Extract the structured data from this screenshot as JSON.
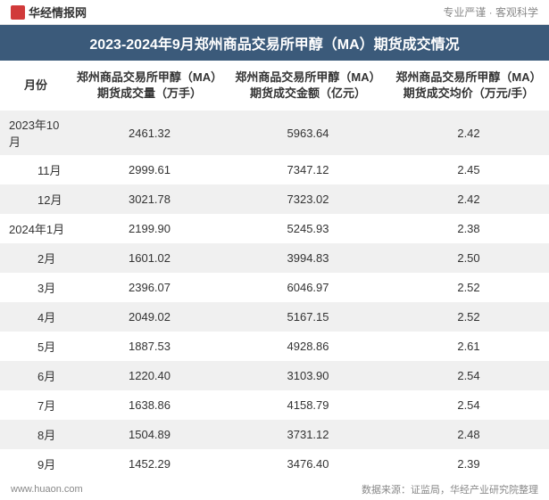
{
  "header": {
    "logo_text": "华经情报网",
    "subtitle": "专业严谨  ·  客观科学"
  },
  "title": "2023-2024年9月郑州商品交易所甲醇（MA）期货成交情况",
  "table": {
    "columns": [
      "月份",
      "郑州商品交易所甲醇（MA）期货成交量（万手）",
      "郑州商品交易所甲醇（MA）期货成交金额（亿元）",
      "郑州商品交易所甲醇（MA）期货成交均价（万元/手）"
    ],
    "rows": [
      {
        "month": "2023年10月",
        "indent": false,
        "vol": "2461.32",
        "amt": "5963.64",
        "avg": "2.42"
      },
      {
        "month": "11月",
        "indent": true,
        "vol": "2999.61",
        "amt": "7347.12",
        "avg": "2.45"
      },
      {
        "month": "12月",
        "indent": true,
        "vol": "3021.78",
        "amt": "7323.02",
        "avg": "2.42"
      },
      {
        "month": "2024年1月",
        "indent": false,
        "vol": "2199.90",
        "amt": "5245.93",
        "avg": "2.38"
      },
      {
        "month": "2月",
        "indent": true,
        "vol": "1601.02",
        "amt": "3994.83",
        "avg": "2.50"
      },
      {
        "month": "3月",
        "indent": true,
        "vol": "2396.07",
        "amt": "6046.97",
        "avg": "2.52"
      },
      {
        "month": "4月",
        "indent": true,
        "vol": "2049.02",
        "amt": "5167.15",
        "avg": "2.52"
      },
      {
        "month": "5月",
        "indent": true,
        "vol": "1887.53",
        "amt": "4928.86",
        "avg": "2.61"
      },
      {
        "month": "6月",
        "indent": true,
        "vol": "1220.40",
        "amt": "3103.90",
        "avg": "2.54"
      },
      {
        "month": "7月",
        "indent": true,
        "vol": "1638.86",
        "amt": "4158.79",
        "avg": "2.54"
      },
      {
        "month": "8月",
        "indent": true,
        "vol": "1504.89",
        "amt": "3731.12",
        "avg": "2.48"
      },
      {
        "month": "9月",
        "indent": true,
        "vol": "1452.29",
        "amt": "3476.40",
        "avg": "2.39"
      }
    ]
  },
  "footer": {
    "left": "www.huaon.com",
    "right": "数据来源：证监局，华经产业研究院整理"
  },
  "colors": {
    "title_bg": "#3b5a7a",
    "row_even": "#f0f0f0",
    "row_odd": "#ffffff",
    "logo": "#d13a3a"
  }
}
